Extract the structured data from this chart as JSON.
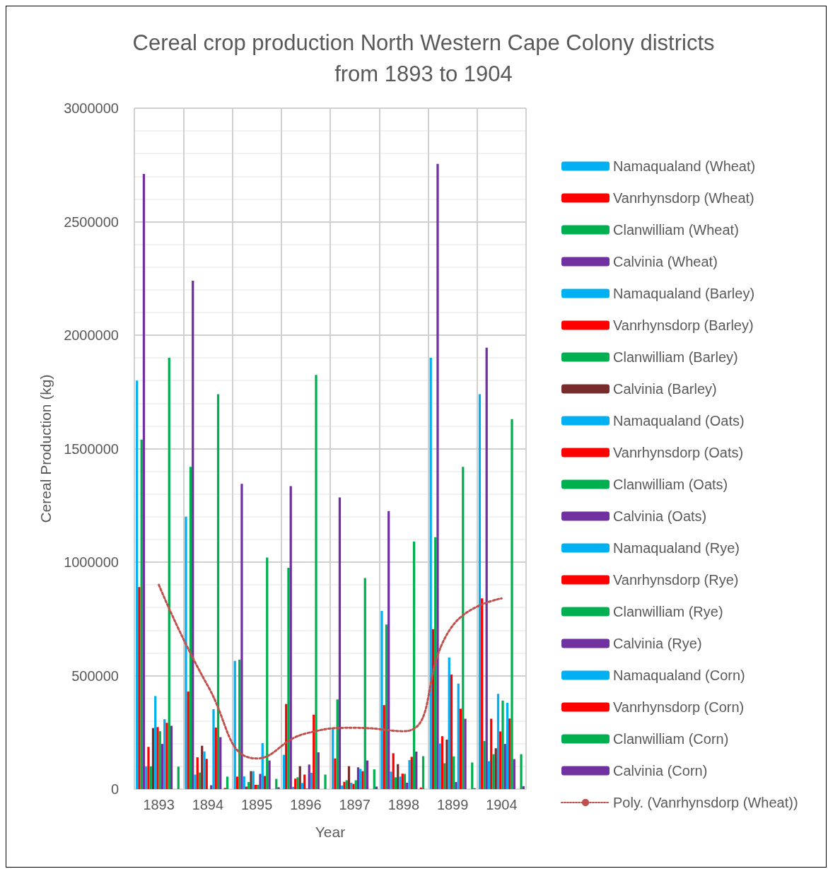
{
  "chart_data": {
    "type": "bar",
    "title": "Cereal crop production North Western Cape Colony districts\nfrom 1893 to 1904",
    "xlabel": "Year",
    "ylabel": "Cereal Production (kg)",
    "categories": [
      "1893",
      "1894",
      "1895",
      "1896",
      "1897",
      "1898",
      "1899",
      "1904"
    ],
    "ylim": [
      0,
      3000000
    ],
    "yticks": [
      0,
      500000,
      1000000,
      1500000,
      2000000,
      2500000,
      3000000
    ],
    "grid": true,
    "legend": "right",
    "series": [
      {
        "name": "Namaqualand (Wheat)",
        "color": "#00b0f0",
        "values": [
          1800000,
          1200000,
          565000,
          151000,
          270000,
          785000,
          1900000,
          1740000
        ]
      },
      {
        "name": "Vanrhynsdorp (Wheat)",
        "color": "#ff0000",
        "values": [
          890000,
          430000,
          55000,
          375000,
          135000,
          370000,
          705000,
          840000
        ]
      },
      {
        "name": "Clanwilliam (Wheat)",
        "color": "#00b050",
        "values": [
          1540000,
          1420000,
          570000,
          975000,
          395000,
          725000,
          1110000,
          212000
        ]
      },
      {
        "name": "Calvinia (Wheat)",
        "color": "#7030a0",
        "values": [
          2710000,
          2240000,
          1345000,
          1335000,
          1285000,
          1225000,
          2755000,
          1945000
        ]
      },
      {
        "name": "Namaqualand (Barley)",
        "color": "#00b0f0",
        "values": [
          100000,
          64000,
          56000,
          10000,
          16000,
          77000,
          201000,
          123000
        ]
      },
      {
        "name": "Vanrhynsdorp (Barley)",
        "color": "#ff0000",
        "values": [
          186000,
          140000,
          11000,
          46000,
          32000,
          158000,
          233000,
          310000
        ]
      },
      {
        "name": "Clanwilliam (Barley)",
        "color": "#00b050",
        "values": [
          100000,
          73000,
          31000,
          52000,
          39000,
          52000,
          114000,
          154000
        ]
      },
      {
        "name": "Calvinia (Barley)",
        "color": "#772c2a",
        "values": [
          269000,
          191000,
          79000,
          101000,
          101000,
          110000,
          218000,
          180000
        ]
      },
      {
        "name": "Namaqualand (Oats)",
        "color": "#00b0f0",
        "values": [
          410000,
          166000,
          79000,
          27000,
          28000,
          55000,
          580000,
          420000
        ]
      },
      {
        "name": "Vanrhynsdorp (Oats)",
        "color": "#ff0000",
        "values": [
          273000,
          133000,
          19000,
          64000,
          23000,
          68000,
          505000,
          254000
        ]
      },
      {
        "name": "Clanwilliam (Oats)",
        "color": "#00b050",
        "values": [
          255000,
          0,
          19000,
          3000,
          39000,
          67000,
          144000,
          390000
        ]
      },
      {
        "name": "Calvinia (Oats)",
        "color": "#7030a0",
        "values": [
          199000,
          17000,
          67000,
          108000,
          96000,
          28000,
          31000,
          199000
        ]
      },
      {
        "name": "Namaqualand (Rye)",
        "color": "#00b0f0",
        "values": [
          308000,
          352000,
          203000,
          72000,
          89000,
          128000,
          465000,
          380000
        ]
      },
      {
        "name": "Vanrhynsdorp (Rye)",
        "color": "#ff0000",
        "values": [
          292000,
          271000,
          58000,
          328000,
          79000,
          142000,
          354000,
          311000
        ]
      },
      {
        "name": "Clanwilliam (Rye)",
        "color": "#00b050",
        "values": [
          1900000,
          1740000,
          1020000,
          1825000,
          930000,
          1090000,
          1420000,
          1630000
        ]
      },
      {
        "name": "Calvinia (Rye)",
        "color": "#7030a0",
        "values": [
          279000,
          229000,
          126000,
          162000,
          126000,
          165000,
          310000,
          132000
        ]
      },
      {
        "name": "Namaqualand (Corn)",
        "color": "#00b0f0",
        "values": [
          0,
          0,
          0,
          0,
          0,
          0,
          0,
          0
        ]
      },
      {
        "name": "Vanrhynsdorp (Corn)",
        "color": "#ff0000",
        "values": [
          0,
          5000,
          0,
          0,
          0,
          7000,
          0,
          0
        ]
      },
      {
        "name": "Clanwilliam (Corn)",
        "color": "#00b050",
        "values": [
          99000,
          55000,
          45000,
          64000,
          87000,
          145000,
          117000,
          154000
        ]
      },
      {
        "name": "Calvinia (Corn)",
        "color": "#7030a0",
        "values": [
          0,
          0,
          8000,
          0,
          11000,
          0,
          4000,
          13000
        ]
      },
      {
        "name": "Poly. (Vanrhynsdorp (Wheat))",
        "type": "line",
        "color": "#c0504d",
        "line_style": "dotted",
        "marker": "none",
        "values": [
          900000,
          455000,
          135000,
          245000,
          270000,
          255000,
          720000,
          840000
        ]
      }
    ]
  }
}
